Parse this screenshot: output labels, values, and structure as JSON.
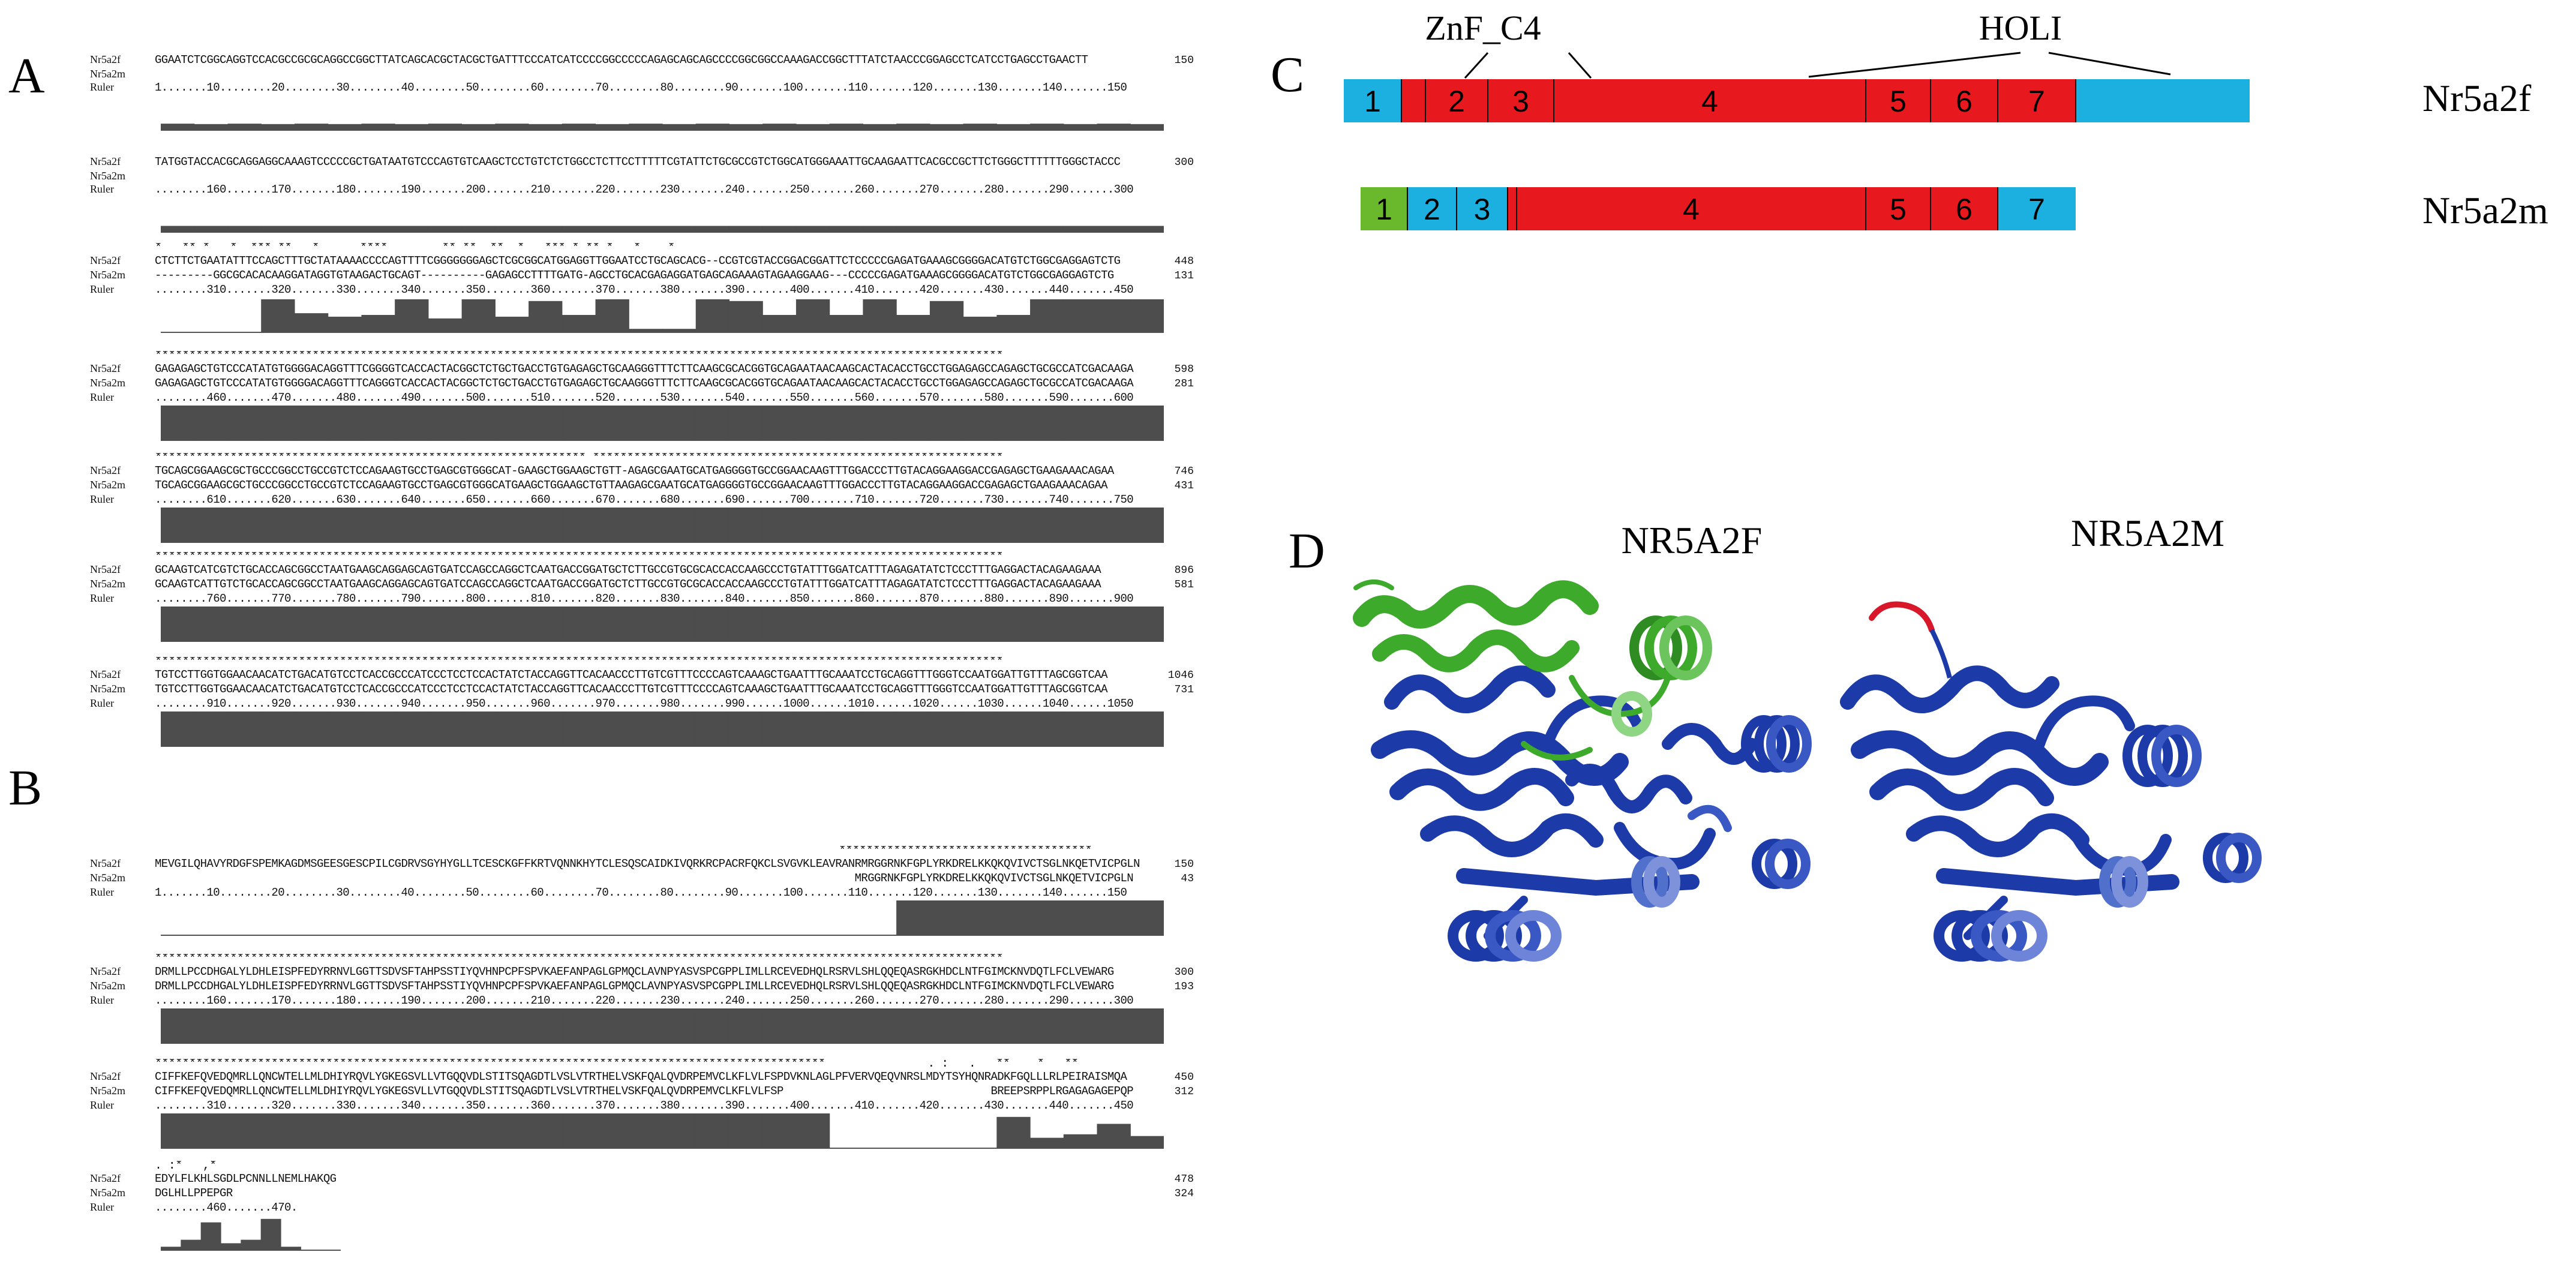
{
  "panels": {
    "a": "A",
    "b": "B",
    "c": "C",
    "d": "D"
  },
  "row_labels": {
    "seq1": "Nr5a2f",
    "seq2": "Nr5a2m",
    "ruler": "Ruler"
  },
  "panel_a": {
    "blocks": [
      {
        "stars": "",
        "seq1": "GGAATCTCGGCAGGTCCACGCCGCGCAGGCCGGCTTATCAGCACGCTACGCTGATTTCCCATCATCCCCGGCCCCCAGAGCAGCAGCCCCGGCGGCCAAAGACCGGCTTTATCTAACCCGGAGCCTCATCCTGAGCCTGAACTT",
        "seq1_end": "150",
        "seq2": "",
        "seq2_end": "",
        "ruler": "1.......10........20........30........40........50........60........70........80........90.......100.......110.......120.......130.......140.......150",
        "ruler_end": "",
        "conservation": [
          0.75,
          0.7,
          0.75,
          0.7,
          0.75,
          0.7,
          0.75,
          0.7,
          0.75,
          0.7,
          0.75,
          0.7,
          0.75,
          0.7,
          0.75,
          0.7,
          0.75,
          0.7,
          0.75,
          0.7,
          0.75,
          0.7,
          0.75,
          0.7,
          0.75,
          0.7,
          0.75,
          0.7,
          0.75,
          0.7
        ],
        "bar_scale": 0.25
      },
      {
        "stars": "",
        "seq1": "TATGGTACCACGCAGGAGGCAAAGTCCCCCGCTGATAATGTCCCAGTGTCAAGCTCCTGTCTCTGGCCTCTTCCTTTTTCGTATTCTGCGCCGTCTGGCATGGGAAATTGCAAGAATTCACGCCGCTTCTGGGCTTTTTTGGGCTACCC",
        "seq1_end": "300",
        "seq2": "",
        "seq2_end": "",
        "ruler": "........160.......170.......180.......190.......200.......210.......220.......230.......240.......250.......260.......270.......280.......290.......300",
        "ruler_end": "",
        "conservation": [
          0.72,
          0.72,
          0.72,
          0.72,
          0.72,
          0.72,
          0.72,
          0.72,
          0.72,
          0.72,
          0.72,
          0.72,
          0.72,
          0.72,
          0.72,
          0.72,
          0.72,
          0.72,
          0.72,
          0.72,
          0.72,
          0.72,
          0.72,
          0.72,
          0.72,
          0.72,
          0.72,
          0.72,
          0.72,
          0.72
        ],
        "bar_scale": 0.25
      },
      {
        "stars": "*   ** *   *  *** **   *      ****        ** **  **  *   *** * ** *   *    *",
        "seq1": "CTCTTCTGAATATTTCCAGCTTTGCTATAAAACCCCAGTTTTCGGGGGGGAGCTCGCGGCATGGAGGTTGGAATCCTGCAGCACG--CCGTCGTACCGGACGGATTCTCCCCCGAGATGAAAGCGGGGACATGTCTGGCGAGGAGTCTG",
        "seq1_end": "448",
        "seq2": "---------GGCGCACACAAGGATAGGTGTAAGACTGCAGT----------GAGAGCCTTTTGATG-AGCCTGCACGAGAGGATGAGCAGAAAGTAGAAGGAAG---CCCCCGAGATGAAAGCGGGGACATGTCTGGCGAGGAGTCTG",
        "seq2_end": "131",
        "ruler": "........310.......320.......330.......340.......350.......360.......370.......380.......390.......400.......410.......420.......430.......440.......450",
        "ruler_end": "",
        "conservation": [
          0.0,
          0.0,
          0.0,
          0.95,
          0.55,
          0.45,
          0.5,
          0.95,
          0.4,
          0.95,
          0.45,
          0.9,
          0.5,
          0.95,
          0.1,
          0.1,
          0.95,
          0.9,
          0.5,
          0.95,
          0.5,
          0.95,
          0.5,
          0.9,
          0.45,
          0.5,
          0.95,
          0.95,
          0.95,
          0.95
        ],
        "bar_scale": 1.0
      },
      {
        "stars": "****************************************************************************************************************************",
        "seq1": "GAGAGAGCTGTCCCATATGTGGGGACAGGTTTCGGGGTCACCACTACGGCTCTGCTGACCTGTGAGAGCTGCAAGGGTTTCTTCAAGCGCACGGTGCAGAATAACAAGCACTACACCTGCCTGGAGAGCCAGAGCTGCGCCATCGACAAGA",
        "seq1_end": "598",
        "seq2": "GAGAGAGCTGTCCCATATGTGGGGACAGGTTTCAGGGTCACCACTACGGCTCTGCTGACCTGTGAGAGCTGCAAGGGTTTCTTCAAGCGCACGGTGCAGAATAACAAGCACTACACCTGCCTGGAGAGCCAGAGCTGCGCCATCGACAAGA",
        "seq2_end": "281",
        "ruler": "........460.......470.......480.......490.......500.......510.......520.......530.......540.......550.......560.......570.......580.......590.......600",
        "ruler_end": "",
        "conservation": [
          1.0,
          1.0,
          1.0,
          1.0,
          1.0,
          1.0,
          1.0,
          1.0,
          1.0,
          1.0,
          1.0,
          1.0,
          1.0,
          1.0,
          1.0,
          1.0,
          1.0,
          1.0,
          1.0,
          1.0,
          1.0,
          1.0,
          1.0,
          1.0,
          1.0,
          1.0,
          1.0,
          1.0,
          1.0,
          1.0
        ],
        "bar_scale": 1.0
      },
      {
        "stars": "*************************************************************** ************************************************************",
        "seq1": "TGCAGCGGAAGCGCTGCCCGGCCTGCCGTCTCCAGAAGTGCCTGAGCGTGGGCAT-GAAGCTGGAAGCTGTT-AGAGCGAATGCATGAGGGGTGCCGGAACAAGTTTGGACCCTTGTACAGGAAGGACCGAGAGCTGAAGAAACAGAA",
        "seq1_end": "746",
        "seq2": "TGCAGCGGAAGCGCTGCCCGGCCTGCCGTCTCCAGAAGTGCCTGAGCGTGGGCATGAAGCTGGAAGCTGTTAAGAGCGAATGCATGAGGGGTGCCGGAACAAGTTTGGACCCTTGTACAGGAAGGACCGAGAGCTGAAGAAACAGAA",
        "seq2_end": "431",
        "ruler": "........610.......620.......630.......640.......650.......660.......670.......680.......690.......700.......710.......720.......730.......740.......750",
        "ruler_end": "",
        "conservation": [
          1.0,
          1.0,
          1.0,
          1.0,
          1.0,
          1.0,
          1.0,
          1.0,
          1.0,
          1.0,
          1.0,
          1.0,
          1.0,
          1.0,
          1.0,
          1.0,
          1.0,
          1.0,
          1.0,
          1.0,
          1.0,
          1.0,
          1.0,
          1.0,
          1.0,
          1.0,
          1.0,
          1.0,
          1.0,
          1.0
        ],
        "bar_scale": 1.0
      },
      {
        "stars": "****************************************************************************************************************************",
        "seq1": "GCAAGTCATCGTCTGCACCAGCGGCCTAATGAAGCAGGAGCAGTGATCCAGCCAGGCTCAATGACCGGATGCTCTTGCCGTGCGCACCACCAAGCCCTGTATTTGGATCATTTAGAGATATCTCCCTTTGAGGACTACAGAAGAAA",
        "seq1_end": "896",
        "seq2": "GCAAGTCATTGTCTGCACCAGCGGCCTAATGAAGCAGGAGCAGTGATCCAGCCAGGCTCAATGACCGGATGCTCTTGCCGTGCGCACCACCAAGCCCTGTATTTGGATCATTTAGAGATATCTCCCTTTGAGGACTACAGAAGAAA",
        "seq2_end": "581",
        "ruler": "........760.......770.......780.......790.......800.......810.......820.......830.......840.......850.......860.......870.......880.......890.......900",
        "ruler_end": "",
        "conservation": [
          1.0,
          1.0,
          1.0,
          1.0,
          1.0,
          1.0,
          1.0,
          1.0,
          1.0,
          1.0,
          1.0,
          1.0,
          1.0,
          1.0,
          1.0,
          1.0,
          1.0,
          1.0,
          1.0,
          1.0,
          1.0,
          1.0,
          1.0,
          1.0,
          1.0,
          1.0,
          1.0,
          1.0,
          1.0,
          1.0
        ],
        "bar_scale": 1.0
      },
      {
        "stars": "****************************************************************************************************************************",
        "seq1": "TGTCCTTGGTGGAACAACATCTGACATGTCCTCACCGCCCATCCCTCCTCCACTATCTACCAGGTTCACAACCCTTGTCGTTTCCCCAGTCAAAGCTGAATTTGCAAATCCTGCAGGTTTGGGTCCAATGGATTGTTTAGCGGTCAA",
        "seq1_end": "1046",
        "seq2": "TGTCCTTGGTGGAACAACATCTGACATGTCCTCACCGCCCATCCCTCCTCCACTATCTACCAGGTTCACAACCCTTGTCGTTTCCCCAGTCAAAGCTGAATTTGCAAATCCTGCAGGTTTGGGTCCAATGGATTGTTTAGCGGTCAA",
        "seq2_end": "731",
        "ruler": "........910.......920.......930.......940.......950.......960.......970.......980.......990......1000......1010......1020......1030......1040......1050",
        "ruler_end": "",
        "conservation": [
          1.0,
          1.0,
          1.0,
          1.0,
          1.0,
          1.0,
          1.0,
          1.0,
          1.0,
          1.0,
          1.0,
          1.0,
          1.0,
          1.0,
          1.0,
          1.0,
          1.0,
          1.0,
          1.0,
          1.0,
          1.0,
          1.0,
          1.0,
          1.0,
          1.0,
          1.0,
          1.0,
          1.0,
          1.0,
          1.0
        ],
        "bar_scale": 1.0
      }
    ]
  },
  "panel_b": {
    "blocks": [
      {
        "stars": "                                                                                                    *************************************",
        "seq1": "MEVGILQHAVYRDGFSPEMKAGDMSGEESGESCPILCGDRVSGYHYGLLTCESCKGFFKRTVQNNKHYTCLESQSCAIDKIVQRKRCPACRFQKCLSVGVKLEAVRANRMRGGRNKFGPLYRKDRELKKQKQVIVCTSGLNKQETVICPGLN",
        "seq1_end": "150",
        "seq2": "                                                                                                            MRGGRNKFGPLYRKDRELKKQKQVIVCTSGLNKQETVICPGLN",
        "seq2_end": "43",
        "ruler": "1.......10........20........30........40........50........60........70........80........90.......100.......110.......120.......130.......140.......150",
        "ruler_end": "",
        "conservation": [
          0.01,
          0.01,
          0.01,
          0.01,
          0.01,
          0.01,
          0.01,
          0.01,
          0.01,
          0.01,
          0.01,
          0.01,
          0.01,
          0.01,
          0.01,
          0.01,
          0.01,
          0.01,
          0.01,
          0.01,
          0.01,
          0.01,
          1.0,
          1.0,
          1.0,
          1.0,
          1.0,
          1.0,
          1.0,
          1.0
        ],
        "bar_scale": 1.0
      },
      {
        "stars": "****************************************************************************************************************************",
        "seq1": "DRMLLPCCDHGALYLDHLEISPFEDYRRNVLGGTTSDVSFTAHPSSTIYQVHNPCPFSPVKAEFANPAGLGPMQCLAVNPYASVSPCGPPLIMLLRCEVEDHQLRSRVLSHLQQEQASRGKHDCLNTFGIMCKNVDQTLFCLVEWARG",
        "seq1_end": "300",
        "seq2": "DRMLLPCCDHGALYLDHLEISPFEDYRRNVLGGTTSDVSFTAHPSSTIYQVHNPCPFSPVKAEFANPAGLGPMQCLAVNPYASVSPCGPPLIMLLRCEVEDHQLRSRVLSHLQQEQASRGKHDCLNTFGIMCKNVDQTLFCLVEWARG",
        "seq2_end": "193",
        "ruler": "........160.......170.......180.......190.......200.......210.......220.......230.......240.......250.......260.......270.......280.......290.......300",
        "ruler_end": "",
        "conservation": [
          1.0,
          1.0,
          1.0,
          1.0,
          1.0,
          1.0,
          1.0,
          1.0,
          1.0,
          1.0,
          1.0,
          1.0,
          1.0,
          1.0,
          1.0,
          1.0,
          1.0,
          1.0,
          1.0,
          1.0,
          1.0,
          1.0,
          1.0,
          1.0,
          1.0,
          1.0,
          1.0,
          1.0,
          1.0,
          1.0
        ],
        "bar_scale": 1.0
      },
      {
        "stars": "**************************************************************************************************               . :   .   **    *   **",
        "seq1": "CIFFKEFQVEDQMRLLQNCWTELLMLDHIYRQVLYGKEGSVLLVTGQQVDLSTITSQAGDTLVSLVTRTHELVSKFQALQVDRPEMVCLKFLVLFSPDVKNLAGLPFVERVQEQVNRSLMDYTSYHQNRADKFGQLLLRLPEIRAISMQA",
        "seq1_end": "450",
        "seq2": "CIFFKEFQVEDQMRLLQNCWTELLMLDHIYRQVLYGKEGSVLLVTGQQVDLSTITSQAGDTLVSLVTRTHELVSKFQALQVDRPEMVCLKFLVLFSP                                BREEPSRPPLRGAGAGAGEPQP",
        "seq2_end": "312",
        "ruler": "........310.......320.......330.......340.......350.......360.......370.......380.......390.......400.......410.......420.......430.......440.......450",
        "ruler_end": "",
        "conservation": [
          1.0,
          1.0,
          1.0,
          1.0,
          1.0,
          1.0,
          1.0,
          1.0,
          1.0,
          1.0,
          1.0,
          1.0,
          1.0,
          1.0,
          1.0,
          1.0,
          1.0,
          1.0,
          1.0,
          1.0,
          0.0,
          0.0,
          0.0,
          0.0,
          0.0,
          0.9,
          0.3,
          0.4,
          0.7,
          0.35
        ],
        "bar_scale": 1.0
      },
      {
        "stars": ". :*   ,*",
        "seq1": "EDYLFLKHLSGDLPCNNLLNEMLHAKQG",
        "seq1_end": "478",
        "seq2": "DGLHLLPPEPGR",
        "seq2_end": "324",
        "ruler": "........460.......470.",
        "ruler_end": "",
        "conservation": [
          0.1,
          0.3,
          0.8,
          0.2,
          0.3,
          0.9,
          0.1,
          0.0,
          0.0
        ],
        "bar_scale": 1.0,
        "short": true
      }
    ]
  },
  "panel_c": {
    "labels": {
      "znf": "ZnF_C4",
      "holi": "HOLI"
    },
    "rows": [
      {
        "name": "Nr5a2f",
        "segments": [
          {
            "n": "1",
            "color": "blue"
          },
          {
            "n": "",
            "color": "red",
            "narrow": true
          },
          {
            "n": "2",
            "color": "red"
          },
          {
            "n": "3",
            "color": "red"
          },
          {
            "n": "4",
            "color": "red"
          },
          {
            "n": "5",
            "color": "red"
          },
          {
            "n": "6",
            "color": "red"
          },
          {
            "n": "7",
            "color": "red"
          },
          {
            "n": "",
            "color": "blue"
          }
        ]
      },
      {
        "name": "Nr5a2m",
        "segments": [
          {
            "n": "1",
            "color": "green"
          },
          {
            "n": "2",
            "color": "blue"
          },
          {
            "n": "3",
            "color": "blue"
          },
          {
            "n": "",
            "color": "red",
            "narrow": true
          },
          {
            "n": "4",
            "color": "red"
          },
          {
            "n": "5",
            "color": "red"
          },
          {
            "n": "6",
            "color": "red"
          },
          {
            "n": "7",
            "color": "blue"
          }
        ]
      }
    ],
    "colors": {
      "blue": "#1cb0e0",
      "red": "#e8191e",
      "green": "#6ab82c"
    }
  },
  "panel_d": {
    "left_title": "NR5A2F",
    "right_title": "NR5A2M",
    "colors": {
      "domain": "#1c3aa8",
      "extra": "#3daa2c",
      "tail": "#d8182a"
    }
  }
}
